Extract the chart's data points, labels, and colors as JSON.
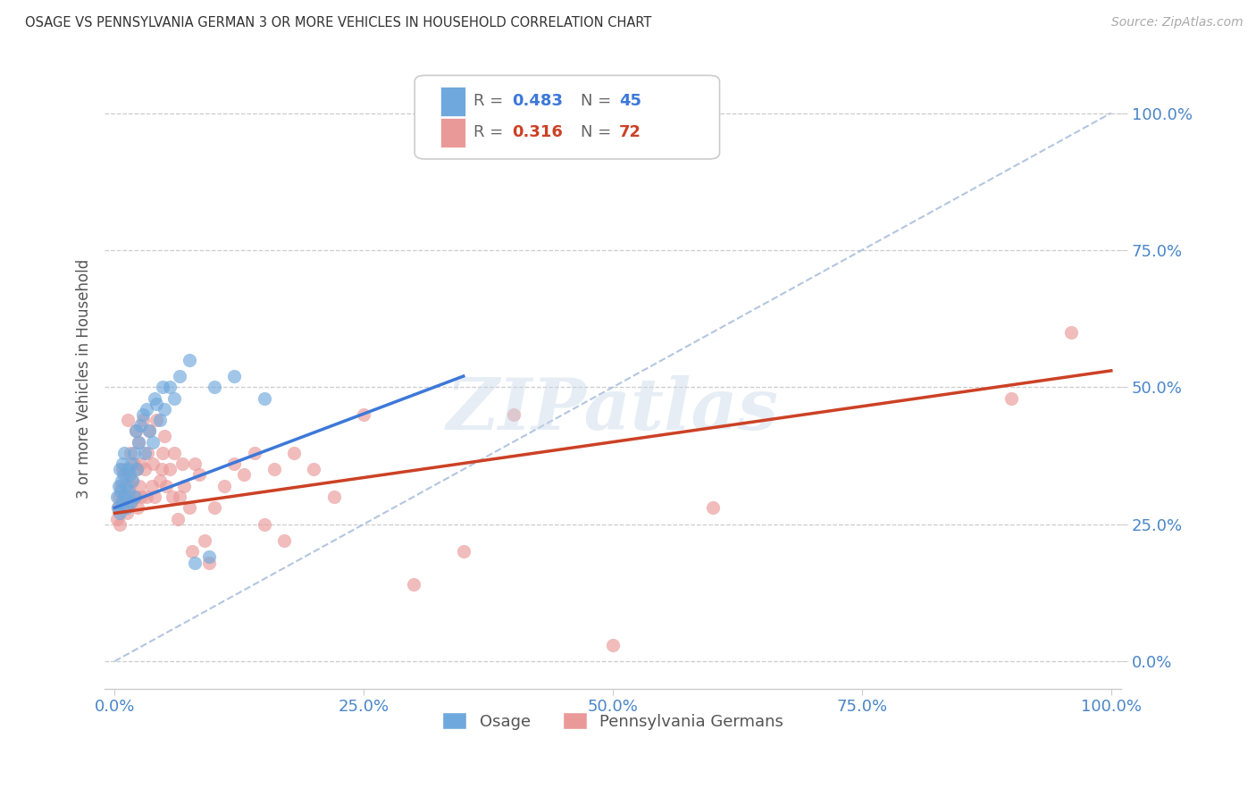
{
  "title": "OSAGE VS PENNSYLVANIA GERMAN 3 OR MORE VEHICLES IN HOUSEHOLD CORRELATION CHART",
  "source": "Source: ZipAtlas.com",
  "ylabel": "3 or more Vehicles in Household",
  "osage_R": 0.483,
  "osage_N": 45,
  "pg_R": 0.316,
  "pg_N": 72,
  "osage_color": "#6fa8dc",
  "pg_color": "#ea9999",
  "osage_line_color": "#3c78d8",
  "pg_line_color": "#cc4125",
  "diagonal_color": "#a0b8d8",
  "axis_label_color": "#4a86c8",
  "grid_color": "#cccccc",
  "background_color": "#ffffff",
  "watermark": "ZIPatlas",
  "osage_x": [
    0.002,
    0.003,
    0.004,
    0.005,
    0.005,
    0.006,
    0.007,
    0.008,
    0.008,
    0.009,
    0.01,
    0.01,
    0.011,
    0.012,
    0.013,
    0.014,
    0.015,
    0.016,
    0.017,
    0.018,
    0.019,
    0.02,
    0.021,
    0.022,
    0.024,
    0.026,
    0.028,
    0.03,
    0.032,
    0.035,
    0.038,
    0.04,
    0.042,
    0.045,
    0.048,
    0.05,
    0.055,
    0.06,
    0.065,
    0.075,
    0.08,
    0.095,
    0.1,
    0.12,
    0.15
  ],
  "osage_y": [
    0.3,
    0.28,
    0.32,
    0.27,
    0.35,
    0.31,
    0.33,
    0.29,
    0.36,
    0.34,
    0.3,
    0.38,
    0.32,
    0.28,
    0.35,
    0.31,
    0.34,
    0.29,
    0.36,
    0.33,
    0.38,
    0.3,
    0.42,
    0.35,
    0.4,
    0.43,
    0.45,
    0.38,
    0.46,
    0.42,
    0.4,
    0.48,
    0.47,
    0.44,
    0.5,
    0.46,
    0.5,
    0.48,
    0.52,
    0.55,
    0.18,
    0.19,
    0.5,
    0.52,
    0.48
  ],
  "pg_x": [
    0.002,
    0.003,
    0.004,
    0.005,
    0.006,
    0.007,
    0.008,
    0.009,
    0.01,
    0.011,
    0.012,
    0.013,
    0.014,
    0.015,
    0.016,
    0.017,
    0.018,
    0.019,
    0.02,
    0.021,
    0.022,
    0.023,
    0.024,
    0.025,
    0.026,
    0.027,
    0.028,
    0.03,
    0.032,
    0.033,
    0.035,
    0.037,
    0.038,
    0.04,
    0.042,
    0.045,
    0.047,
    0.048,
    0.05,
    0.052,
    0.055,
    0.058,
    0.06,
    0.063,
    0.065,
    0.068,
    0.07,
    0.075,
    0.078,
    0.08,
    0.085,
    0.09,
    0.095,
    0.1,
    0.11,
    0.12,
    0.13,
    0.14,
    0.15,
    0.16,
    0.17,
    0.18,
    0.2,
    0.22,
    0.25,
    0.3,
    0.35,
    0.4,
    0.5,
    0.6,
    0.9,
    0.96
  ],
  "pg_y": [
    0.26,
    0.28,
    0.3,
    0.25,
    0.32,
    0.29,
    0.35,
    0.28,
    0.3,
    0.34,
    0.27,
    0.44,
    0.3,
    0.32,
    0.38,
    0.29,
    0.33,
    0.36,
    0.3,
    0.42,
    0.35,
    0.28,
    0.4,
    0.32,
    0.36,
    0.3,
    0.44,
    0.35,
    0.3,
    0.38,
    0.42,
    0.32,
    0.36,
    0.3,
    0.44,
    0.33,
    0.35,
    0.38,
    0.41,
    0.32,
    0.35,
    0.3,
    0.38,
    0.26,
    0.3,
    0.36,
    0.32,
    0.28,
    0.2,
    0.36,
    0.34,
    0.22,
    0.18,
    0.28,
    0.32,
    0.36,
    0.34,
    0.38,
    0.25,
    0.35,
    0.22,
    0.38,
    0.35,
    0.3,
    0.45,
    0.14,
    0.2,
    0.45,
    0.03,
    0.28,
    0.48,
    0.6
  ],
  "osage_line_x": [
    0.0,
    0.35
  ],
  "osage_line_y_start": 0.28,
  "osage_line_y_end": 0.52,
  "pg_line_x": [
    0.0,
    1.0
  ],
  "pg_line_y_start": 0.27,
  "pg_line_y_end": 0.53,
  "xlim": [
    0.0,
    1.0
  ],
  "ylim": [
    -0.05,
    1.08
  ],
  "xticks": [
    0.0,
    0.25,
    0.5,
    0.75,
    1.0
  ],
  "xtick_labels": [
    "0.0%",
    "25.0%",
    "50.0%",
    "75.0%",
    "100.0%"
  ],
  "yticks": [
    0.0,
    0.25,
    0.5,
    0.75,
    1.0
  ],
  "ytick_labels": [
    "0.0%",
    "25.0%",
    "50.0%",
    "75.0%",
    "100.0%"
  ]
}
